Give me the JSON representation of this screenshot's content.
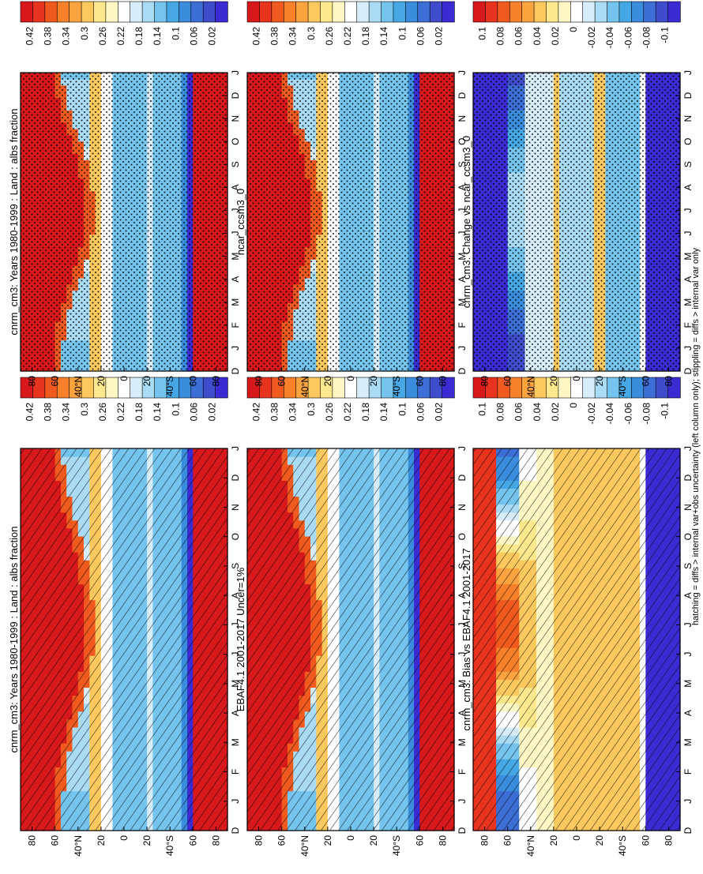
{
  "figure": {
    "note": "hatching = diffs > internal var+obs uncertainty (left column only); stippling = diffs > internal var only"
  },
  "scales": {
    "abs": {
      "labels": [
        "0.42",
        "0.38",
        "0.34",
        "0.3",
        "0.26",
        "0.22",
        "0.18",
        "0.14",
        "0.1",
        "0.06",
        "0.02"
      ],
      "colors": [
        "#d7191c",
        "#e8341f",
        "#f05a1f",
        "#f7802a",
        "#fba33f",
        "#fdc95e",
        "#fee88d",
        "#fff8c4",
        "#ffffff",
        "#d7eefa",
        "#a9dcf4",
        "#74c4ee",
        "#45a8e4",
        "#3a8ddc",
        "#3d6ed5",
        "#3f4dcc",
        "#3a2cd2"
      ]
    },
    "diff": {
      "labels": [
        "0.1",
        "0.08",
        "0.06",
        "0.04",
        "0.02",
        "0",
        "-0.02",
        "-0.04",
        "-0.06",
        "-0.08",
        "-0.1"
      ],
      "colors": [
        "#d7191c",
        "#e8341f",
        "#f05a1f",
        "#f7802a",
        "#fba33f",
        "#fdc95e",
        "#fee88d",
        "#fff8c4",
        "#ffffff",
        "#d7eefa",
        "#a9dcf4",
        "#74c4ee",
        "#45a8e4",
        "#3a8ddc",
        "#3d6ed5",
        "#3f4dcc",
        "#3a2cd2"
      ]
    }
  },
  "chart_data": [
    {
      "type": "heatmap",
      "title": "cnrm_cm3: Years 1980-1999 : Land : albs fraction",
      "x_ticks": [
        "D",
        "J",
        "F",
        "M",
        "A",
        "M",
        "J",
        "J",
        "A",
        "S",
        "O",
        "N",
        "D",
        "J"
      ],
      "y_ticks": [
        "80",
        "60",
        "40°N",
        "20",
        "0",
        "20",
        "40°S",
        "60",
        "80"
      ],
      "ylim": [
        -90,
        90
      ],
      "scale": "abs",
      "overlay": "hatching",
      "pattern": "high-latitude albedo above 0.42 (red), subtropics 0.26-0.34 (yellow), tropics 0.14-0.18 (blue)"
    },
    {
      "type": "heatmap",
      "title": "cnrm_cm3: Years 1980-1999 : Land : albs fraction",
      "x_ticks": [
        "D",
        "J",
        "F",
        "M",
        "A",
        "M",
        "J",
        "J",
        "A",
        "S",
        "O",
        "N",
        "D",
        "J"
      ],
      "y_ticks": [
        "80",
        "60",
        "40°N",
        "20",
        "0",
        "20",
        "40°S",
        "60",
        "80"
      ],
      "ylim": [
        -90,
        90
      ],
      "scale": "abs",
      "overlay": "stippling"
    },
    {
      "type": "heatmap",
      "title": "EBAF4.1 2001-2017 Uncer=1%",
      "x_ticks": [
        "D",
        "J",
        "F",
        "M",
        "A",
        "M",
        "J",
        "J",
        "A",
        "S",
        "O",
        "N",
        "D",
        "J"
      ],
      "y_ticks": [
        "80",
        "60",
        "40°N",
        "20",
        "0",
        "20",
        "40°S",
        "60",
        "80"
      ],
      "ylim": [
        -90,
        90
      ],
      "scale": "abs",
      "overlay": "hatching"
    },
    {
      "type": "heatmap",
      "title": "ncar_ccsm3_0",
      "x_ticks": [
        "D",
        "J",
        "F",
        "M",
        "A",
        "M",
        "J",
        "J",
        "A",
        "S",
        "O",
        "N",
        "D",
        "J"
      ],
      "y_ticks": [
        "80",
        "60",
        "40°N",
        "20",
        "0",
        "20",
        "40°S",
        "60",
        "80"
      ],
      "ylim": [
        -90,
        90
      ],
      "scale": "abs",
      "overlay": "stippling"
    },
    {
      "type": "heatmap",
      "title": "cnrm_cm3: Bias vs EBAF4.1 2001-2017",
      "x_ticks": [
        "D",
        "J",
        "F",
        "M",
        "A",
        "M",
        "J",
        "J",
        "A",
        "S",
        "O",
        "N",
        "D",
        "J"
      ],
      "y_ticks": [
        "80",
        "60",
        "40°N",
        "20",
        "0",
        "20",
        "40°S",
        "60",
        "80"
      ],
      "ylim": [
        -90,
        90
      ],
      "scale": "diff",
      "overlay": "hatching"
    },
    {
      "type": "heatmap",
      "title": "cnrm_cm3: Change vs ncar_ccsm3_0",
      "x_ticks": [
        "D",
        "J",
        "F",
        "M",
        "A",
        "M",
        "J",
        "J",
        "A",
        "S",
        "O",
        "N",
        "D",
        "J"
      ],
      "y_ticks": [
        "80",
        "60",
        "40°N",
        "20",
        "0",
        "20",
        "40°S",
        "60",
        "80"
      ],
      "ylim": [
        -90,
        90
      ],
      "scale": "diff",
      "overlay": "stippling"
    }
  ]
}
